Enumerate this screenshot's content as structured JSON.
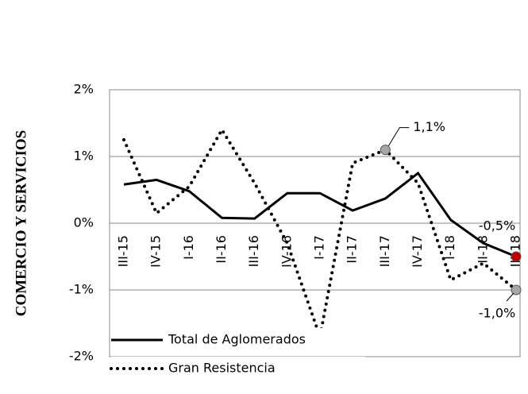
{
  "chart_data": {
    "type": "line",
    "y_label": "COMERCIO Y SERVICIOS",
    "categories": [
      "III-15",
      "IV-15",
      "I-16",
      "II-16",
      "III-16",
      "IV-16",
      "I-17",
      "II-17",
      "III-17",
      "IV-17",
      "I-18",
      "II-18",
      "III-18"
    ],
    "series": [
      {
        "name": "Total de Aglomerados",
        "color": "#000000",
        "dash": "solid",
        "marker_color": "#c00000",
        "values": [
          0.58,
          0.65,
          0.48,
          0.08,
          0.07,
          0.45,
          0.45,
          0.19,
          0.37,
          0.75,
          0.05,
          -0.3,
          -0.5
        ],
        "value_labels": [
          null,
          null,
          null,
          null,
          null,
          null,
          null,
          null,
          null,
          null,
          null,
          null,
          "-0,5%"
        ]
      },
      {
        "name": "Gran Resistencia",
        "color": "#000000",
        "dash": "dotted",
        "marker_color": "#a6a6a6",
        "values": [
          1.25,
          0.15,
          0.55,
          1.4,
          0.6,
          -0.3,
          -1.7,
          0.9,
          1.1,
          0.6,
          -0.85,
          -0.6,
          -1.0
        ],
        "value_labels": [
          null,
          null,
          null,
          null,
          null,
          null,
          null,
          null,
          "1,1%",
          null,
          null,
          null,
          "-1,0%"
        ]
      }
    ],
    "ylim": [
      -2,
      2
    ],
    "yticks": [
      {
        "value": -2,
        "label": "-2%"
      },
      {
        "value": -1,
        "label": "-1%"
      },
      {
        "value": 0,
        "label": "0%"
      },
      {
        "value": 1,
        "label": "1%"
      },
      {
        "value": 2,
        "label": "2%"
      }
    ],
    "grid": true
  }
}
